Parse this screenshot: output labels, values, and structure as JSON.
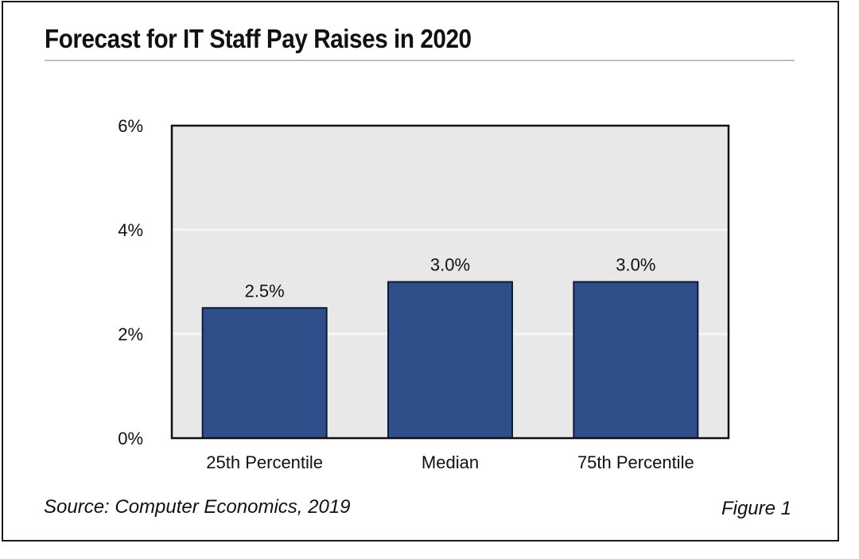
{
  "title": "Forecast for IT Staff Pay Raises in 2020",
  "source": "Source: Computer Economics, 2019",
  "figure_label": "Figure 1",
  "colors": {
    "bar_fill": "#2f4f8a",
    "bar_stroke": "#0d1b33",
    "plot_background": "#e8e8e8",
    "gridline": "#f6f6f6",
    "frame": "#1a1a1a",
    "title_rule": "#bdbdbd"
  },
  "chart_data": {
    "type": "bar",
    "title": "Forecast for IT Staff Pay Raises in 2020",
    "categories": [
      "25th Percentile",
      "Median",
      "75th Percentile"
    ],
    "values": [
      2.5,
      3.0,
      3.0
    ],
    "data_labels": [
      "2.5%",
      "3.0%",
      "3.0%"
    ],
    "xlabel": "",
    "ylabel": "",
    "ylim": [
      0,
      6
    ],
    "yticks": [
      0,
      2,
      4,
      6
    ],
    "ytick_labels": [
      "0%",
      "2%",
      "4%",
      "6%"
    ],
    "grid": true,
    "legend": "none"
  }
}
